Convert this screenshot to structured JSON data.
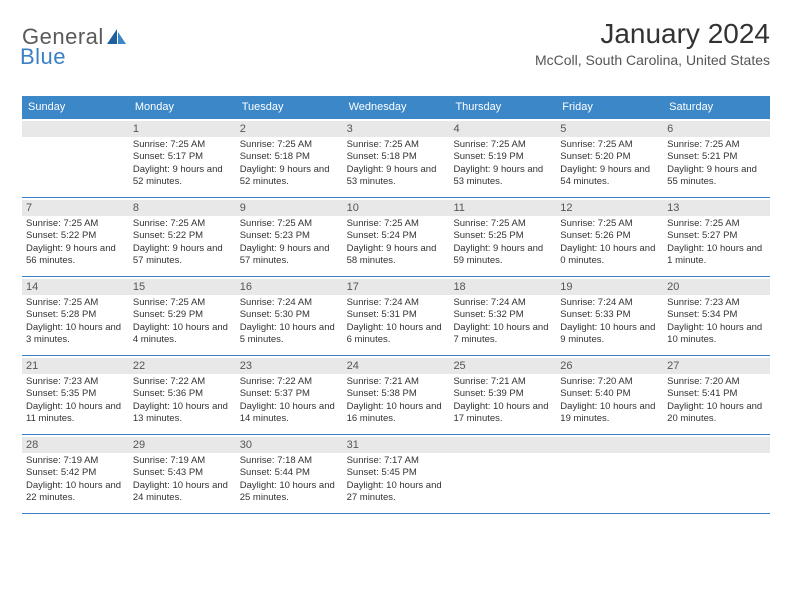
{
  "logo": {
    "general": "General",
    "blue": "Blue"
  },
  "title": "January 2024",
  "subtitle": "McColl, South Carolina, United States",
  "dayheads": [
    "Sunday",
    "Monday",
    "Tuesday",
    "Wednesday",
    "Thursday",
    "Friday",
    "Saturday"
  ],
  "colors": {
    "header_bg": "#3b87c8",
    "rule": "#3b7fc4",
    "daynum_bg": "#e8e8e8",
    "text": "#333333",
    "logo_gray": "#5a5a5a",
    "logo_blue": "#3b7fc4"
  },
  "weeks": [
    [
      {
        "blank": true
      },
      {
        "n": "1",
        "sr": "7:25 AM",
        "ss": "5:17 PM",
        "dl": "9 hours and 52 minutes."
      },
      {
        "n": "2",
        "sr": "7:25 AM",
        "ss": "5:18 PM",
        "dl": "9 hours and 52 minutes."
      },
      {
        "n": "3",
        "sr": "7:25 AM",
        "ss": "5:18 PM",
        "dl": "9 hours and 53 minutes."
      },
      {
        "n": "4",
        "sr": "7:25 AM",
        "ss": "5:19 PM",
        "dl": "9 hours and 53 minutes."
      },
      {
        "n": "5",
        "sr": "7:25 AM",
        "ss": "5:20 PM",
        "dl": "9 hours and 54 minutes."
      },
      {
        "n": "6",
        "sr": "7:25 AM",
        "ss": "5:21 PM",
        "dl": "9 hours and 55 minutes."
      }
    ],
    [
      {
        "n": "7",
        "sr": "7:25 AM",
        "ss": "5:22 PM",
        "dl": "9 hours and 56 minutes."
      },
      {
        "n": "8",
        "sr": "7:25 AM",
        "ss": "5:22 PM",
        "dl": "9 hours and 57 minutes."
      },
      {
        "n": "9",
        "sr": "7:25 AM",
        "ss": "5:23 PM",
        "dl": "9 hours and 57 minutes."
      },
      {
        "n": "10",
        "sr": "7:25 AM",
        "ss": "5:24 PM",
        "dl": "9 hours and 58 minutes."
      },
      {
        "n": "11",
        "sr": "7:25 AM",
        "ss": "5:25 PM",
        "dl": "9 hours and 59 minutes."
      },
      {
        "n": "12",
        "sr": "7:25 AM",
        "ss": "5:26 PM",
        "dl": "10 hours and 0 minutes."
      },
      {
        "n": "13",
        "sr": "7:25 AM",
        "ss": "5:27 PM",
        "dl": "10 hours and 1 minute."
      }
    ],
    [
      {
        "n": "14",
        "sr": "7:25 AM",
        "ss": "5:28 PM",
        "dl": "10 hours and 3 minutes."
      },
      {
        "n": "15",
        "sr": "7:25 AM",
        "ss": "5:29 PM",
        "dl": "10 hours and 4 minutes."
      },
      {
        "n": "16",
        "sr": "7:24 AM",
        "ss": "5:30 PM",
        "dl": "10 hours and 5 minutes."
      },
      {
        "n": "17",
        "sr": "7:24 AM",
        "ss": "5:31 PM",
        "dl": "10 hours and 6 minutes."
      },
      {
        "n": "18",
        "sr": "7:24 AM",
        "ss": "5:32 PM",
        "dl": "10 hours and 7 minutes."
      },
      {
        "n": "19",
        "sr": "7:24 AM",
        "ss": "5:33 PM",
        "dl": "10 hours and 9 minutes."
      },
      {
        "n": "20",
        "sr": "7:23 AM",
        "ss": "5:34 PM",
        "dl": "10 hours and 10 minutes."
      }
    ],
    [
      {
        "n": "21",
        "sr": "7:23 AM",
        "ss": "5:35 PM",
        "dl": "10 hours and 11 minutes."
      },
      {
        "n": "22",
        "sr": "7:22 AM",
        "ss": "5:36 PM",
        "dl": "10 hours and 13 minutes."
      },
      {
        "n": "23",
        "sr": "7:22 AM",
        "ss": "5:37 PM",
        "dl": "10 hours and 14 minutes."
      },
      {
        "n": "24",
        "sr": "7:21 AM",
        "ss": "5:38 PM",
        "dl": "10 hours and 16 minutes."
      },
      {
        "n": "25",
        "sr": "7:21 AM",
        "ss": "5:39 PM",
        "dl": "10 hours and 17 minutes."
      },
      {
        "n": "26",
        "sr": "7:20 AM",
        "ss": "5:40 PM",
        "dl": "10 hours and 19 minutes."
      },
      {
        "n": "27",
        "sr": "7:20 AM",
        "ss": "5:41 PM",
        "dl": "10 hours and 20 minutes."
      }
    ],
    [
      {
        "n": "28",
        "sr": "7:19 AM",
        "ss": "5:42 PM",
        "dl": "10 hours and 22 minutes."
      },
      {
        "n": "29",
        "sr": "7:19 AM",
        "ss": "5:43 PM",
        "dl": "10 hours and 24 minutes."
      },
      {
        "n": "30",
        "sr": "7:18 AM",
        "ss": "5:44 PM",
        "dl": "10 hours and 25 minutes."
      },
      {
        "n": "31",
        "sr": "7:17 AM",
        "ss": "5:45 PM",
        "dl": "10 hours and 27 minutes."
      },
      {
        "blank": true
      },
      {
        "blank": true
      },
      {
        "blank": true
      }
    ]
  ],
  "labels": {
    "sunrise": "Sunrise: ",
    "sunset": "Sunset: ",
    "daylight": "Daylight: "
  }
}
